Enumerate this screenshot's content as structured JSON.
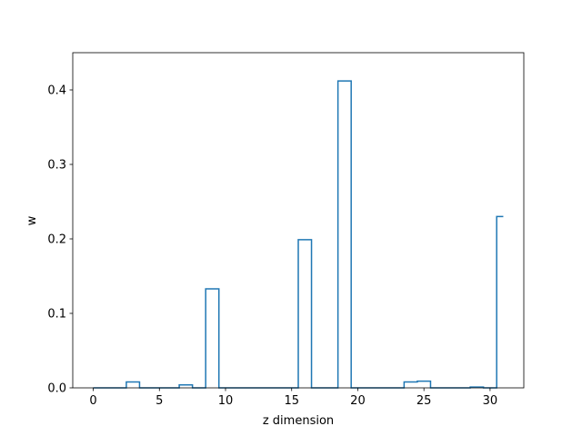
{
  "chart_data": {
    "type": "step",
    "title": "",
    "xlabel": "z dimension",
    "ylabel": "w",
    "xlim": [
      -1.55,
      32.55
    ],
    "ylim": [
      0,
      0.45
    ],
    "xticks": [
      0,
      5,
      10,
      15,
      20,
      25,
      30
    ],
    "yticks": [
      0.0,
      0.1,
      0.2,
      0.3,
      0.4
    ],
    "ytick_labels": [
      "0.0",
      "0.1",
      "0.2",
      "0.3",
      "0.4"
    ],
    "grid": false,
    "series": [
      {
        "color": "#1f77b4",
        "step_where": "mid",
        "x": [
          0,
          1,
          2,
          3,
          4,
          5,
          6,
          7,
          8,
          9,
          10,
          11,
          12,
          13,
          14,
          15,
          16,
          17,
          18,
          19,
          20,
          21,
          22,
          23,
          24,
          25,
          26,
          27,
          28,
          29,
          30,
          31
        ],
        "values": [
          0,
          0,
          0,
          0.008,
          0,
          0,
          0,
          0.004,
          0,
          0.133,
          0,
          0,
          0,
          0,
          0,
          0,
          0.199,
          0,
          0,
          0.412,
          0,
          0,
          0,
          0,
          0.008,
          0.009,
          0,
          0,
          0,
          0.001,
          0,
          0.23
        ]
      }
    ]
  }
}
